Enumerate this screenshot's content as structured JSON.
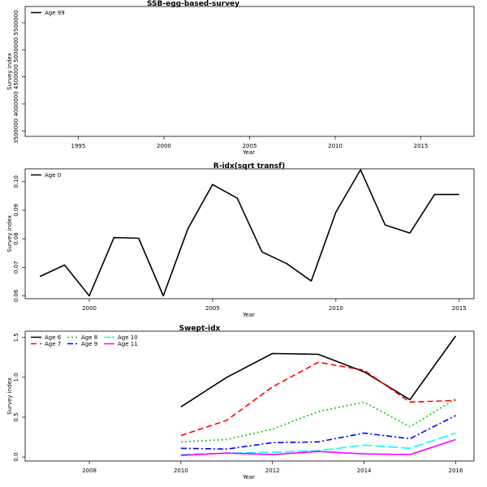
{
  "chart_data": [
    {
      "type": "line",
      "title": "SSB-egg-based-survey",
      "xlabel": "Year",
      "ylabel": "Survey index",
      "xlim": [
        1991.9,
        2018.1
      ],
      "ylim": [
        3400000,
        5800000
      ],
      "xticks": [
        1995,
        2000,
        2005,
        2010,
        2015
      ],
      "yticks": [
        3500000,
        4000000,
        4500000,
        5000000,
        5500000
      ],
      "ytick_labels": [
        "3500000",
        "4000000",
        "4500000",
        "5000000",
        "5500000"
      ],
      "legend_position": "top-left",
      "series": [
        {
          "name": "Age 99",
          "color": "#000000",
          "dash": "",
          "x": [],
          "values": []
        }
      ]
    },
    {
      "type": "line",
      "title": "R-idx(sqrt transf)",
      "xlabel": "Year",
      "ylabel": "Survey index",
      "xlim": [
        1997.4,
        2015.6
      ],
      "ylim": [
        0.059,
        0.1045
      ],
      "xticks": [
        2000,
        2005,
        2010,
        2015
      ],
      "yticks": [
        0.06,
        0.07,
        0.08,
        0.09,
        0.1
      ],
      "ytick_labels": [
        "0.06",
        "0.07",
        "0.08",
        "0.09",
        "0.10"
      ],
      "legend_position": "top-left",
      "series": [
        {
          "name": "Age 0",
          "color": "#000000",
          "dash": "",
          "x": [
            1998,
            1999,
            2000,
            2001,
            2002,
            2003,
            2004,
            2005,
            2006,
            2007,
            2008,
            2009,
            2010,
            2011,
            2012,
            2013,
            2014,
            2015
          ],
          "values": [
            0.0668,
            0.0708,
            0.06,
            0.0804,
            0.0802,
            0.06,
            0.0835,
            0.099,
            0.0942,
            0.0754,
            0.0713,
            0.0652,
            0.0893,
            0.1042,
            0.0848,
            0.082,
            0.0955,
            0.0955
          ]
        }
      ]
    },
    {
      "type": "line",
      "title": "Swept-idx",
      "xlabel": "Year",
      "ylabel": "Survey index",
      "xlim": [
        2006.6,
        2016.4
      ],
      "ylim": [
        -0.05,
        1.58
      ],
      "xticks": [
        2008,
        2010,
        2012,
        2014,
        2016
      ],
      "yticks": [
        0.0,
        0.5,
        1.0,
        1.5
      ],
      "ytick_labels": [
        "0.0",
        "0.5",
        "1.0",
        "1.5"
      ],
      "legend_position": "top-left",
      "series": [
        {
          "name": "Age 6",
          "color": "#000000",
          "dash": "",
          "x": [
            2010,
            2011,
            2012,
            2013,
            2014,
            2015,
            2016
          ],
          "values": [
            0.63,
            1.0,
            1.3,
            1.29,
            1.07,
            0.72,
            1.52
          ]
        },
        {
          "name": "Age 7",
          "color": "#ff0000",
          "dash": "7,4",
          "x": [
            2010,
            2011,
            2012,
            2013,
            2014,
            2015,
            2016
          ],
          "values": [
            0.27,
            0.46,
            0.88,
            1.19,
            1.09,
            0.69,
            0.71
          ]
        },
        {
          "name": "Age 8",
          "color": "#00cd00",
          "dash": "2,3",
          "x": [
            2010,
            2011,
            2012,
            2013,
            2014,
            2015,
            2016
          ],
          "values": [
            0.19,
            0.22,
            0.35,
            0.57,
            0.69,
            0.38,
            0.73
          ]
        },
        {
          "name": "Age 9",
          "color": "#0000ff",
          "dash": "7,3,2,3",
          "x": [
            2010,
            2011,
            2012,
            2013,
            2014,
            2015,
            2016
          ],
          "values": [
            0.11,
            0.1,
            0.18,
            0.19,
            0.3,
            0.23,
            0.52
          ]
        },
        {
          "name": "Age 10",
          "color": "#00ffff",
          "dash": "12,4",
          "x": [
            2010,
            2011,
            2012,
            2013,
            2014,
            2015,
            2016
          ],
          "values": [
            0.03,
            0.05,
            0.06,
            0.08,
            0.15,
            0.11,
            0.3
          ]
        },
        {
          "name": "Age 11",
          "color": "#ff00ff",
          "dash": "",
          "x": [
            2010,
            2011,
            2012,
            2013,
            2014,
            2015,
            2016
          ],
          "values": [
            0.02,
            0.05,
            0.03,
            0.07,
            0.04,
            0.03,
            0.22
          ]
        }
      ]
    }
  ]
}
